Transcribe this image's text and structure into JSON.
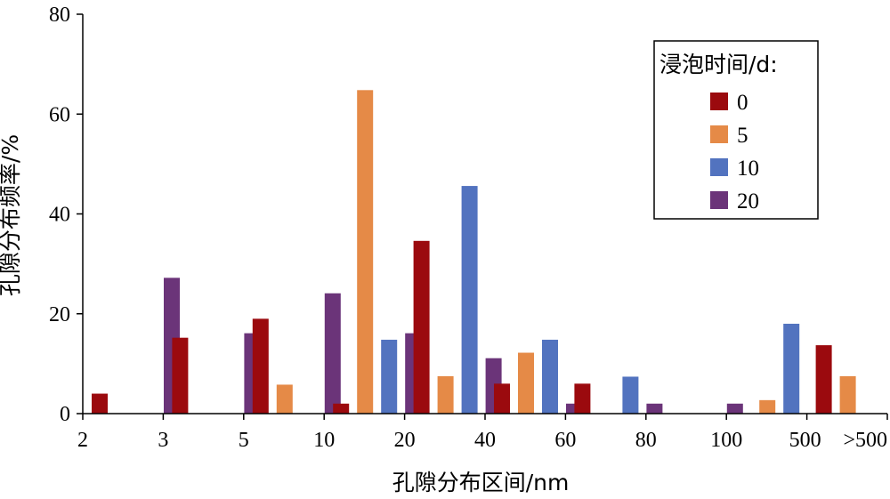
{
  "chart_data": {
    "type": "bar",
    "title": "",
    "xlabel": "孔隙分布区间/nm",
    "ylabel": "孔隙分布频率/%",
    "ylim": [
      0,
      80
    ],
    "yticks": [
      "0",
      "20",
      "40",
      "60",
      "80"
    ],
    "xticks": [
      "2",
      "3",
      "5",
      "10",
      "20",
      "40",
      "60",
      "80",
      "100",
      "500",
      ">500"
    ],
    "categories": [
      "2-3",
      "3-5",
      "5-10",
      "10-20",
      "20-40",
      "40-60",
      "60-80",
      "80-100",
      "100-500",
      "500->500"
    ],
    "legend": {
      "title": "浸泡时间/d:",
      "placement": "top-right"
    },
    "grid": false,
    "series": [
      {
        "name": "0",
        "color": "#9B0A0E",
        "values": [
          4,
          15.2,
          19,
          2,
          34.6,
          6,
          6,
          0,
          0,
          13.7
        ]
      },
      {
        "name": "5",
        "color": "#E58A47",
        "values": [
          0,
          0,
          5.8,
          64.8,
          7.5,
          12.2,
          0,
          0,
          2.7,
          7.5
        ]
      },
      {
        "name": "10",
        "color": "#5273BF",
        "values": [
          0,
          0,
          0,
          14.8,
          45.6,
          14.8,
          7.4,
          0,
          18,
          0
        ]
      },
      {
        "name": "20",
        "color": "#6B3479",
        "values": [
          27.2,
          16.1,
          24.1,
          16.1,
          11.1,
          2,
          2,
          2,
          0,
          0
        ]
      }
    ]
  }
}
